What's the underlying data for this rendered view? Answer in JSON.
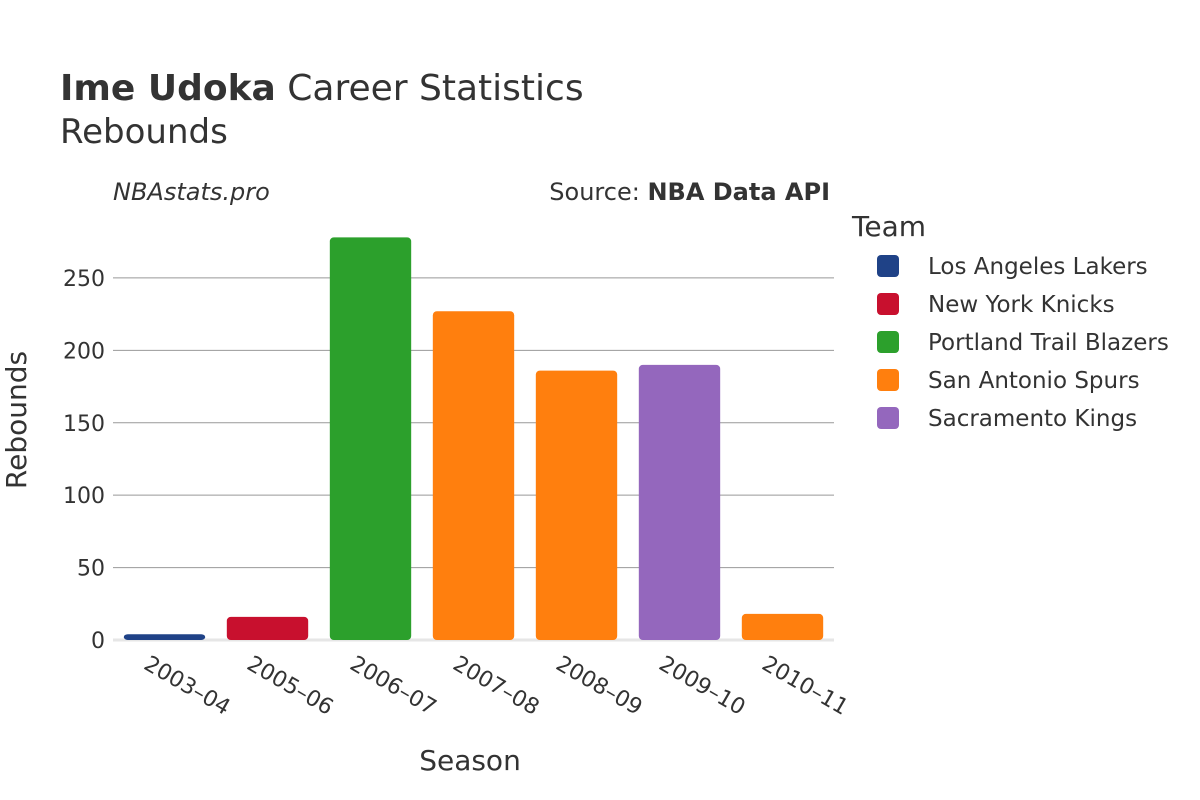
{
  "header": {
    "player_name": "Ime Udoka",
    "title_rest": " Career Statistics",
    "subtitle": "Rebounds",
    "watermark": "NBAstats.pro",
    "source_prefix": "Source: ",
    "source_name": "NBA Data API"
  },
  "legend": {
    "title": "Team",
    "placement": "right",
    "items": [
      {
        "label": "Los Angeles Lakers",
        "color": "#1f4287"
      },
      {
        "label": "New York Knicks",
        "color": "#c8102e"
      },
      {
        "label": "Portland Trail Blazers",
        "color": "#2ca02c"
      },
      {
        "label": "San Antonio Spurs",
        "color": "#ff7f0e"
      },
      {
        "label": "Sacramento Kings",
        "color": "#9467bd"
      }
    ]
  },
  "chart_data": {
    "type": "bar",
    "title": "Ime Udoka Career Statistics",
    "subtitle": "Rebounds",
    "xlabel": "Season",
    "ylabel": "Rebounds",
    "categories": [
      "2003–04",
      "2005–06",
      "2006–07",
      "2007–08",
      "2008–09",
      "2009–10",
      "2010–11"
    ],
    "values": [
      4,
      16,
      278,
      227,
      186,
      190,
      18
    ],
    "teams": [
      "Los Angeles Lakers",
      "New York Knicks",
      "Portland Trail Blazers",
      "San Antonio Spurs",
      "San Antonio Spurs",
      "Sacramento Kings",
      "San Antonio Spurs"
    ],
    "ylim": [
      0,
      290
    ],
    "yticks": [
      0,
      50,
      100,
      150,
      200,
      250
    ],
    "grid": true,
    "legend_position": "right"
  }
}
